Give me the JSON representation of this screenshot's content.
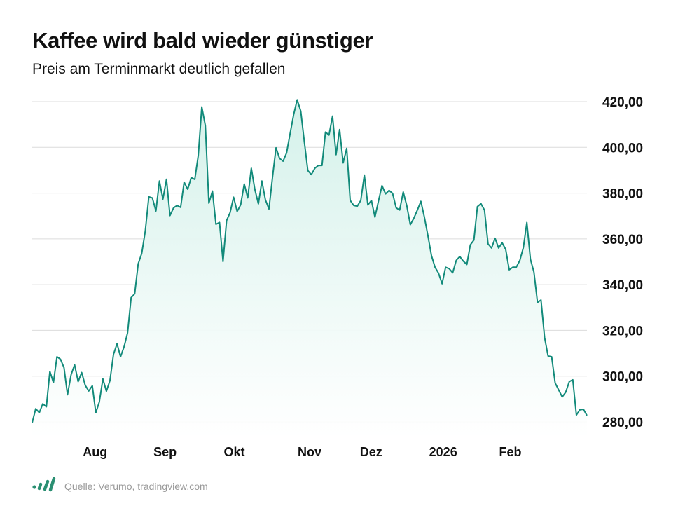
{
  "header": {
    "title": "Kaffee wird bald wieder günstiger",
    "subtitle": "Preis am Terminmarkt deutlich gefallen"
  },
  "footer": {
    "source": "Quelle: Verumo, tradingview.com",
    "logo_icon": "bar-chart-logo-icon"
  },
  "colors": {
    "line": "#128a7a",
    "area_top": "#d4f1ea",
    "grid": "#dcdcdc",
    "logo": "#2a8f72"
  },
  "chart_data": {
    "type": "area",
    "title": "Kaffee wird bald wieder günstiger",
    "subtitle": "Preis am Terminmarkt deutlich gefallen",
    "xlabel": "",
    "ylabel": "",
    "ylim": [
      272,
      422
    ],
    "y_ticks": [
      {
        "value": 280,
        "label": "280,00"
      },
      {
        "value": 300,
        "label": "300,00"
      },
      {
        "value": 320,
        "label": "320,00"
      },
      {
        "value": 340,
        "label": "340,00"
      },
      {
        "value": 360,
        "label": "360,00"
      },
      {
        "value": 380,
        "label": "380,00"
      },
      {
        "value": 400,
        "label": "400,00"
      },
      {
        "value": 420,
        "label": "420,00"
      }
    ],
    "x_ticks": [
      {
        "label": "Aug",
        "index": 17.8
      },
      {
        "label": "Sep",
        "index": 37.6
      },
      {
        "label": "Okt",
        "index": 57.2
      },
      {
        "label": "Nov",
        "index": 78.5
      },
      {
        "label": "Dez",
        "index": 95.9
      },
      {
        "label": "2026",
        "index": 116.3
      },
      {
        "label": "Feb",
        "index": 135.3
      }
    ],
    "grid": true,
    "y_axis_position": "right",
    "values": [
      279.7,
      285.8,
      284.0,
      287.9,
      286.6,
      302.1,
      297.2,
      308.5,
      307.4,
      303.7,
      291.9,
      300.6,
      305.0,
      297.6,
      301.6,
      296.0,
      293.5,
      295.8,
      284.0,
      288.7,
      298.8,
      293.4,
      298.1,
      309.5,
      314.2,
      308.5,
      312.9,
      319.0,
      334.3,
      336.0,
      349.1,
      353.7,
      363.4,
      378.4,
      377.9,
      372.2,
      385.3,
      377.4,
      386.1,
      370.2,
      373.6,
      374.6,
      373.8,
      384.8,
      381.7,
      386.8,
      386.0,
      396.5,
      417.7,
      409.5,
      375.6,
      380.9,
      366.4,
      367.2,
      350.1,
      368.0,
      371.5,
      378.2,
      372.0,
      374.9,
      384.0,
      377.9,
      390.9,
      381.7,
      375.3,
      385.3,
      377.1,
      373.1,
      386.8,
      399.8,
      395.2,
      394.0,
      397.6,
      406.2,
      414.4,
      420.8,
      415.9,
      402.7,
      389.9,
      388.1,
      390.9,
      392.1,
      392.1,
      406.7,
      405.4,
      413.7,
      396.8,
      407.8,
      393.2,
      399.6,
      376.8,
      374.6,
      374.3,
      376.8,
      387.9,
      374.8,
      376.8,
      369.5,
      376.6,
      383.3,
      379.7,
      381.2,
      379.9,
      373.6,
      372.6,
      380.5,
      374.6,
      366.2,
      369.0,
      372.6,
      376.4,
      369.5,
      361.3,
      352.7,
      347.6,
      345.0,
      340.4,
      347.6,
      347.0,
      345.2,
      350.6,
      352.3,
      350.3,
      348.8,
      357.4,
      359.5,
      374.1,
      375.4,
      372.6,
      357.8,
      356.0,
      360.3,
      356.0,
      358.3,
      355.4,
      346.5,
      347.6,
      347.6,
      350.6,
      356.2,
      367.2,
      351.1,
      345.5,
      332.2,
      333.3,
      316.9,
      308.8,
      308.5,
      297.0,
      294.0,
      290.9,
      293.0,
      297.6,
      298.4,
      283.0,
      285.3,
      285.5,
      282.8
    ]
  }
}
